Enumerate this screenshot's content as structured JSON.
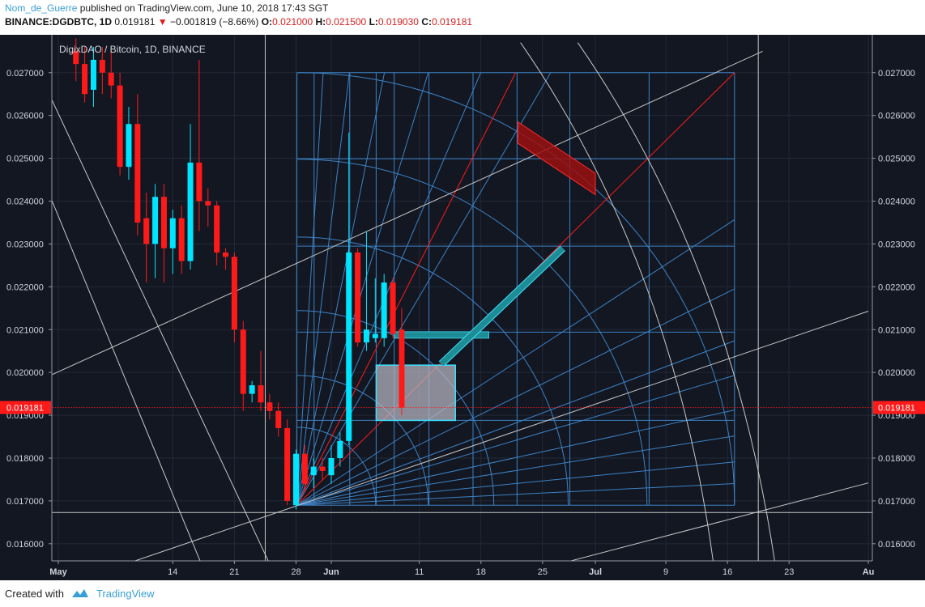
{
  "header": {
    "author": "Nom_de_Guerre",
    "published": "published on TradingView.com, June 10, 2018 17:43 SGT",
    "symbol": "BINANCE:DGDBTC, 1D",
    "last": "0.019181",
    "change": "−0.001819 (−8.66%)",
    "o_label": "O:",
    "o_value": "0.021000",
    "h_label": "H:",
    "h_value": "0.021500",
    "l_label": "L:",
    "l_value": "0.019030",
    "c_label": "C:",
    "c_value": "0.019181"
  },
  "footer": {
    "created_with": "Created with",
    "brand": "TradingView"
  },
  "colors": {
    "background": "#131722",
    "bull": "#00e5ff",
    "bear": "#ff1a1a",
    "fib": "#3d82c4",
    "white_line": "#c8c8c8",
    "price_tag": "#ff1a1a"
  },
  "chart_data": {
    "type": "candlestick",
    "title": "DigixDAO / Bitcoin, 1D, BINANCE",
    "last_price_label": "0.019181",
    "last_price": 0.019181,
    "y_ticks": [
      "0.016000",
      "0.017000",
      "0.018000",
      "0.019000",
      "0.020000",
      "0.021000",
      "0.022000",
      "0.023000",
      "0.024000",
      "0.025000",
      "0.026000",
      "0.027000"
    ],
    "y_tick_values": [
      0.016,
      0.017,
      0.018,
      0.019,
      0.02,
      0.021,
      0.022,
      0.023,
      0.024,
      0.025,
      0.026,
      0.027
    ],
    "ylim": [
      0.0156,
      0.0276
    ],
    "x_ticks": [
      {
        "label": "May",
        "day": 0,
        "bold": true
      },
      {
        "label": "14",
        "day": 13,
        "bold": false
      },
      {
        "label": "21",
        "day": 20,
        "bold": false
      },
      {
        "label": "28",
        "day": 27,
        "bold": false
      },
      {
        "label": "Jun",
        "day": 31,
        "bold": true
      },
      {
        "label": "11",
        "day": 41,
        "bold": false
      },
      {
        "label": "18",
        "day": 48,
        "bold": false
      },
      {
        "label": "25",
        "day": 55,
        "bold": false
      },
      {
        "label": "Jul",
        "day": 61,
        "bold": true
      },
      {
        "label": "9",
        "day": 69,
        "bold": false
      },
      {
        "label": "16",
        "day": 76,
        "bold": false
      },
      {
        "label": "23",
        "day": 83,
        "bold": false
      },
      {
        "label": "Au",
        "day": 92,
        "bold": true
      }
    ],
    "xlim_days": [
      -0.5,
      92.0
    ],
    "candles": [
      {
        "d": 2,
        "o": 0.0275,
        "h": 0.0278,
        "l": 0.0268,
        "c": 0.0272
      },
      {
        "d": 3,
        "o": 0.0272,
        "h": 0.0276,
        "l": 0.0263,
        "c": 0.0265
      },
      {
        "d": 4,
        "o": 0.0266,
        "h": 0.0276,
        "l": 0.0262,
        "c": 0.0273
      },
      {
        "d": 5,
        "o": 0.0273,
        "h": 0.0276,
        "l": 0.0265,
        "c": 0.027
      },
      {
        "d": 6,
        "o": 0.027,
        "h": 0.0275,
        "l": 0.0264,
        "c": 0.0267
      },
      {
        "d": 7,
        "o": 0.0267,
        "h": 0.027,
        "l": 0.0246,
        "c": 0.0248
      },
      {
        "d": 8,
        "o": 0.0248,
        "h": 0.0262,
        "l": 0.0245,
        "c": 0.0258
      },
      {
        "d": 9,
        "o": 0.0258,
        "h": 0.0265,
        "l": 0.0232,
        "c": 0.0235
      },
      {
        "d": 10,
        "o": 0.0236,
        "h": 0.0242,
        "l": 0.0221,
        "c": 0.023
      },
      {
        "d": 11,
        "o": 0.023,
        "h": 0.0244,
        "l": 0.0222,
        "c": 0.0241
      },
      {
        "d": 12,
        "o": 0.0241,
        "h": 0.0244,
        "l": 0.0221,
        "c": 0.0229
      },
      {
        "d": 13,
        "o": 0.0229,
        "h": 0.0238,
        "l": 0.0223,
        "c": 0.0236
      },
      {
        "d": 14,
        "o": 0.0236,
        "h": 0.0239,
        "l": 0.0223,
        "c": 0.0226
      },
      {
        "d": 15,
        "o": 0.0226,
        "h": 0.0258,
        "l": 0.0224,
        "c": 0.0249
      },
      {
        "d": 16,
        "o": 0.0249,
        "h": 0.0273,
        "l": 0.0233,
        "c": 0.024
      },
      {
        "d": 17,
        "o": 0.024,
        "h": 0.0243,
        "l": 0.0234,
        "c": 0.0239
      },
      {
        "d": 18,
        "o": 0.0239,
        "h": 0.024,
        "l": 0.0225,
        "c": 0.0228
      },
      {
        "d": 19,
        "o": 0.0228,
        "h": 0.0229,
        "l": 0.0224,
        "c": 0.0227
      },
      {
        "d": 20,
        "o": 0.0227,
        "h": 0.0228,
        "l": 0.0207,
        "c": 0.021
      },
      {
        "d": 21,
        "o": 0.021,
        "h": 0.0212,
        "l": 0.0191,
        "c": 0.0195
      },
      {
        "d": 22,
        "o": 0.0195,
        "h": 0.0198,
        "l": 0.0193,
        "c": 0.0197
      },
      {
        "d": 23,
        "o": 0.0197,
        "h": 0.0205,
        "l": 0.0191,
        "c": 0.0193
      },
      {
        "d": 24,
        "o": 0.0193,
        "h": 0.0195,
        "l": 0.0189,
        "c": 0.0191
      },
      {
        "d": 25,
        "o": 0.0191,
        "h": 0.0193,
        "l": 0.0185,
        "c": 0.0187
      },
      {
        "d": 26,
        "o": 0.0187,
        "h": 0.0189,
        "l": 0.0169,
        "c": 0.017
      },
      {
        "d": 27,
        "o": 0.0169,
        "h": 0.0182,
        "l": 0.0168,
        "c": 0.0181
      },
      {
        "d": 28,
        "o": 0.0181,
        "h": 0.0183,
        "l": 0.0172,
        "c": 0.0174
      },
      {
        "d": 29,
        "o": 0.0176,
        "h": 0.018,
        "l": 0.0173,
        "c": 0.0178
      },
      {
        "d": 30,
        "o": 0.0178,
        "h": 0.018,
        "l": 0.0175,
        "c": 0.0177
      },
      {
        "d": 31,
        "o": 0.0176,
        "h": 0.0183,
        "l": 0.0174,
        "c": 0.018
      },
      {
        "d": 32,
        "o": 0.018,
        "h": 0.0186,
        "l": 0.0178,
        "c": 0.0184
      },
      {
        "d": 33,
        "o": 0.0184,
        "h": 0.0256,
        "l": 0.0183,
        "c": 0.0228
      },
      {
        "d": 34,
        "o": 0.0228,
        "h": 0.0229,
        "l": 0.0206,
        "c": 0.0207
      },
      {
        "d": 35,
        "o": 0.0207,
        "h": 0.0233,
        "l": 0.0205,
        "c": 0.021
      },
      {
        "d": 36,
        "o": 0.0208,
        "h": 0.0222,
        "l": 0.0207,
        "c": 0.0209
      },
      {
        "d": 37,
        "o": 0.0208,
        "h": 0.0223,
        "l": 0.0206,
        "c": 0.0221
      },
      {
        "d": 38,
        "o": 0.0221,
        "h": 0.0222,
        "l": 0.0208,
        "c": 0.0209
      },
      {
        "d": 39,
        "o": 0.021,
        "h": 0.0215,
        "l": 0.019,
        "c": 0.019181
      }
    ],
    "horizontal_line": 0.01673,
    "vertical_lines_days": [
      23.5,
      79.5
    ],
    "gann_box": {
      "d0": 27.1,
      "d1": 76.8,
      "p0": 0.0169,
      "p1": 0.027
    },
    "gann_levels": [
      0.0169,
      0.01888,
      0.02094,
      0.02295,
      0.02499,
      0.027
    ],
    "gann_time_days": [
      27.1,
      29.05,
      33.1,
      36.1,
      38.15,
      42.1,
      47.1,
      52.1,
      58.1,
      67.1,
      76.8
    ],
    "highlight_rect": {
      "d0": 36.1,
      "d1": 45.1,
      "p0": 0.01888,
      "p1": 0.02017
    },
    "teal_bar": {
      "d0": 38.15,
      "d1": 48.9,
      "p": 0.020875
    },
    "teal_diagonal": {
      "d0": 43.5,
      "p0": 0.0202,
      "d1": 57.3,
      "p1": 0.0229
    },
    "red_channel": {
      "d0": 52.2,
      "p0": 0.02535,
      "d1": 61.0,
      "p1": 0.02465,
      "width_p": 0.0005
    }
  }
}
